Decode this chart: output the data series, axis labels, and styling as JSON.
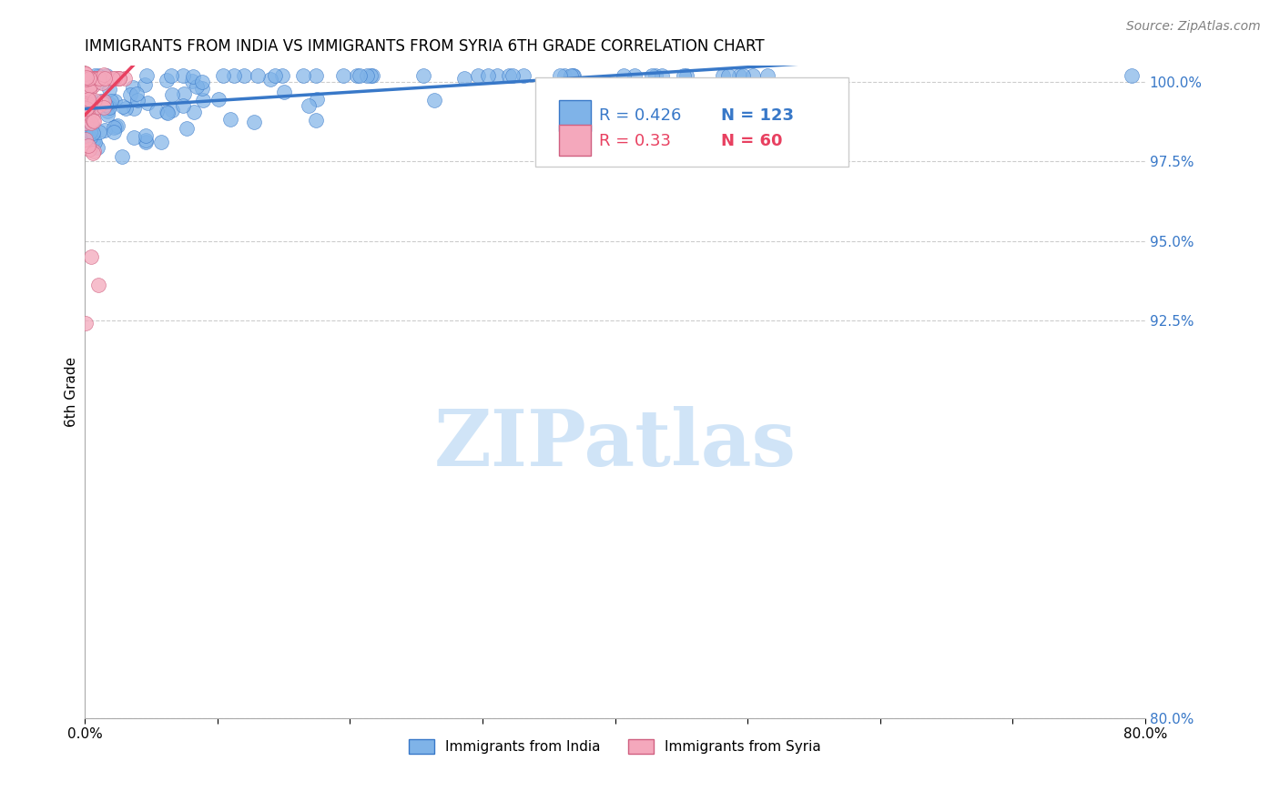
{
  "title": "IMMIGRANTS FROM INDIA VS IMMIGRANTS FROM SYRIA 6TH GRADE CORRELATION CHART",
  "source": "Source: ZipAtlas.com",
  "ylabel": "6th Grade",
  "xlim": [
    0.0,
    0.8
  ],
  "ylim": [
    0.8,
    1.005
  ],
  "R_india": 0.426,
  "N_india": 123,
  "R_syria": 0.33,
  "N_syria": 60,
  "india_color": "#7fb3e8",
  "syria_color": "#f4a8bc",
  "india_line_color": "#3878c8",
  "syria_line_color": "#e84060",
  "legend_blue_text": "#3878c8",
  "legend_pink_text": "#e84060",
  "watermark_color": "#d0e4f7"
}
